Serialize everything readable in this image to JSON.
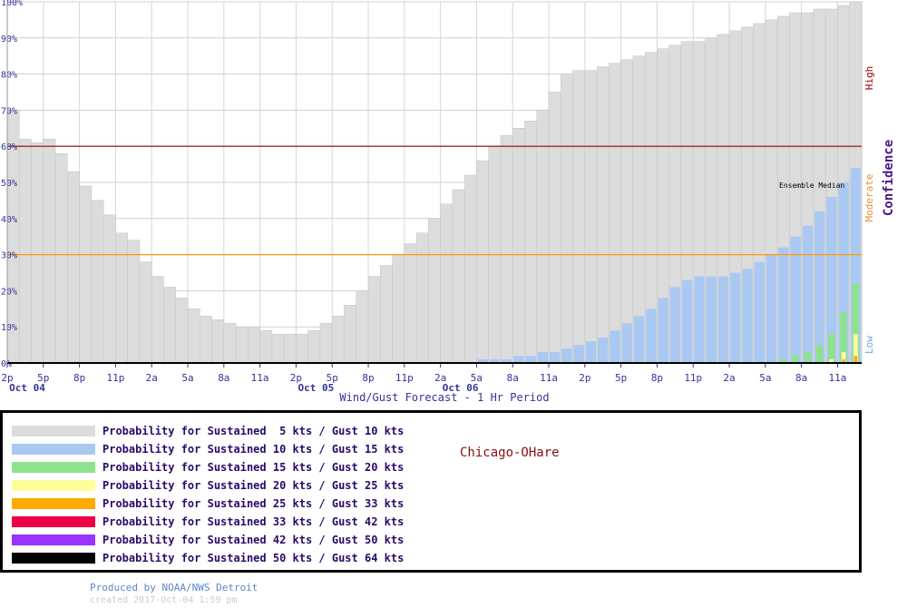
{
  "chart_data": {
    "type": "bar",
    "title": "Wind/Gust Forecast - 1 Hr Period",
    "xlabel": "Wind/Gust Forecast - 1 Hr Period",
    "ylabel": "Confidence",
    "ylim": [
      0,
      100
    ],
    "x_tick_labels": [
      "2p",
      "5p",
      "8p",
      "11p",
      "2a",
      "5a",
      "8a",
      "11a",
      "2p",
      "5p",
      "8p",
      "11p",
      "2a",
      "5a",
      "8a",
      "11a",
      "2p",
      "5p",
      "8p",
      "11p",
      "2a",
      "5a",
      "8a",
      "11a"
    ],
    "date_labels": [
      {
        "label": "Oct 04",
        "tick": "2p"
      },
      {
        "label": "Oct 05",
        "tick": "2p"
      },
      {
        "label": "Oct 06",
        "tick": "2a"
      }
    ],
    "y_tick_labels": [
      "0%",
      "10%",
      "20%",
      "30%",
      "40%",
      "50%",
      "60%",
      "70%",
      "80%",
      "90%",
      "100%"
    ],
    "thresholds": [
      {
        "value": 30,
        "color": "#ff9900",
        "label": "Moderate"
      },
      {
        "value": 60,
        "color": "#990000",
        "label": "High"
      }
    ],
    "confidence_labels": [
      {
        "label": "Low",
        "color": "#6fa8dc"
      },
      {
        "label": "Moderate",
        "color": "#e69138"
      },
      {
        "label": "High",
        "color": "#990000"
      }
    ],
    "annotation": "Ensemble Median",
    "grid": true,
    "hours": 71,
    "series": [
      {
        "name": "Probability for Sustained  5 kts / Gust 10 kts",
        "color": "#dcdcdc",
        "values": [
          70,
          62,
          61,
          62,
          58,
          53,
          49,
          45,
          41,
          36,
          34,
          28,
          24,
          21,
          18,
          15,
          13,
          12,
          11,
          10,
          10,
          9,
          8,
          8,
          8,
          9,
          11,
          13,
          16,
          20,
          24,
          27,
          30,
          33,
          36,
          40,
          44,
          48,
          52,
          56,
          60,
          63,
          65,
          67,
          70,
          75,
          80,
          81,
          81,
          82,
          83,
          84,
          85,
          86,
          87,
          88,
          89,
          89,
          90,
          91,
          92,
          93,
          94,
          95,
          96,
          97,
          97,
          98,
          98,
          99,
          100
        ]
      },
      {
        "name": "Probability for Sustained 10 kts / Gust 15 kts",
        "color": "#a9c9f2",
        "values": [
          0,
          0,
          0,
          0,
          0,
          0,
          0,
          0,
          0,
          0,
          0,
          0,
          0,
          0,
          0,
          0,
          0,
          0,
          0,
          0,
          0,
          0,
          0,
          0,
          0,
          0,
          0,
          0,
          0,
          0,
          0,
          0,
          0,
          0,
          0,
          0,
          0,
          0,
          0,
          1,
          1,
          1,
          2,
          2,
          3,
          3,
          4,
          5,
          6,
          7,
          9,
          11,
          13,
          15,
          18,
          21,
          23,
          24,
          24,
          24,
          25,
          26,
          28,
          30,
          32,
          35,
          38,
          42,
          46,
          50,
          54
        ]
      },
      {
        "name": "Probability for Sustained 15 kts / Gust 20 kts",
        "color": "#8de38d",
        "values": [
          0,
          0,
          0,
          0,
          0,
          0,
          0,
          0,
          0,
          0,
          0,
          0,
          0,
          0,
          0,
          0,
          0,
          0,
          0,
          0,
          0,
          0,
          0,
          0,
          0,
          0,
          0,
          0,
          0,
          0,
          0,
          0,
          0,
          0,
          0,
          0,
          0,
          0,
          0,
          0,
          0,
          0,
          0,
          0,
          0,
          0,
          0,
          0,
          0,
          0,
          0,
          0,
          0,
          0,
          0,
          0,
          0,
          0,
          0,
          0,
          0,
          0,
          0,
          0,
          1,
          2,
          3,
          5,
          8,
          14,
          22
        ]
      },
      {
        "name": "Probability for Sustained 20 kts / Gust 25 kts",
        "color": "#ffff99",
        "values": [
          0,
          0,
          0,
          0,
          0,
          0,
          0,
          0,
          0,
          0,
          0,
          0,
          0,
          0,
          0,
          0,
          0,
          0,
          0,
          0,
          0,
          0,
          0,
          0,
          0,
          0,
          0,
          0,
          0,
          0,
          0,
          0,
          0,
          0,
          0,
          0,
          0,
          0,
          0,
          0,
          0,
          0,
          0,
          0,
          0,
          0,
          0,
          0,
          0,
          0,
          0,
          0,
          0,
          0,
          0,
          0,
          0,
          0,
          0,
          0,
          0,
          0,
          0,
          0,
          0,
          0,
          0,
          0,
          1,
          3,
          8
        ]
      },
      {
        "name": "Probability for Sustained 25 kts / Gust 33 kts",
        "color": "#ffaa00",
        "values": [
          0,
          0,
          0,
          0,
          0,
          0,
          0,
          0,
          0,
          0,
          0,
          0,
          0,
          0,
          0,
          0,
          0,
          0,
          0,
          0,
          0,
          0,
          0,
          0,
          0,
          0,
          0,
          0,
          0,
          0,
          0,
          0,
          0,
          0,
          0,
          0,
          0,
          0,
          0,
          0,
          0,
          0,
          0,
          0,
          0,
          0,
          0,
          0,
          0,
          0,
          0,
          0,
          0,
          0,
          0,
          0,
          0,
          0,
          0,
          0,
          0,
          0,
          0,
          0,
          0,
          0,
          0,
          0,
          0,
          1,
          2
        ]
      },
      {
        "name": "Probability for Sustained 33 kts / Gust 42 kts",
        "color": "#ee0044",
        "values": []
      },
      {
        "name": "Probability for Sustained 42 kts / Gust 50 kts",
        "color": "#9933ff",
        "values": []
      },
      {
        "name": "Probability for Sustained 50 kts / Gust 64 kts",
        "color": "#000000",
        "values": []
      }
    ]
  },
  "station": "Chicago-OHare",
  "footer": {
    "produced_by": "Produced by NOAA/NWS Detroit",
    "created": "created 2017-Oct-04 1:59 pm"
  }
}
